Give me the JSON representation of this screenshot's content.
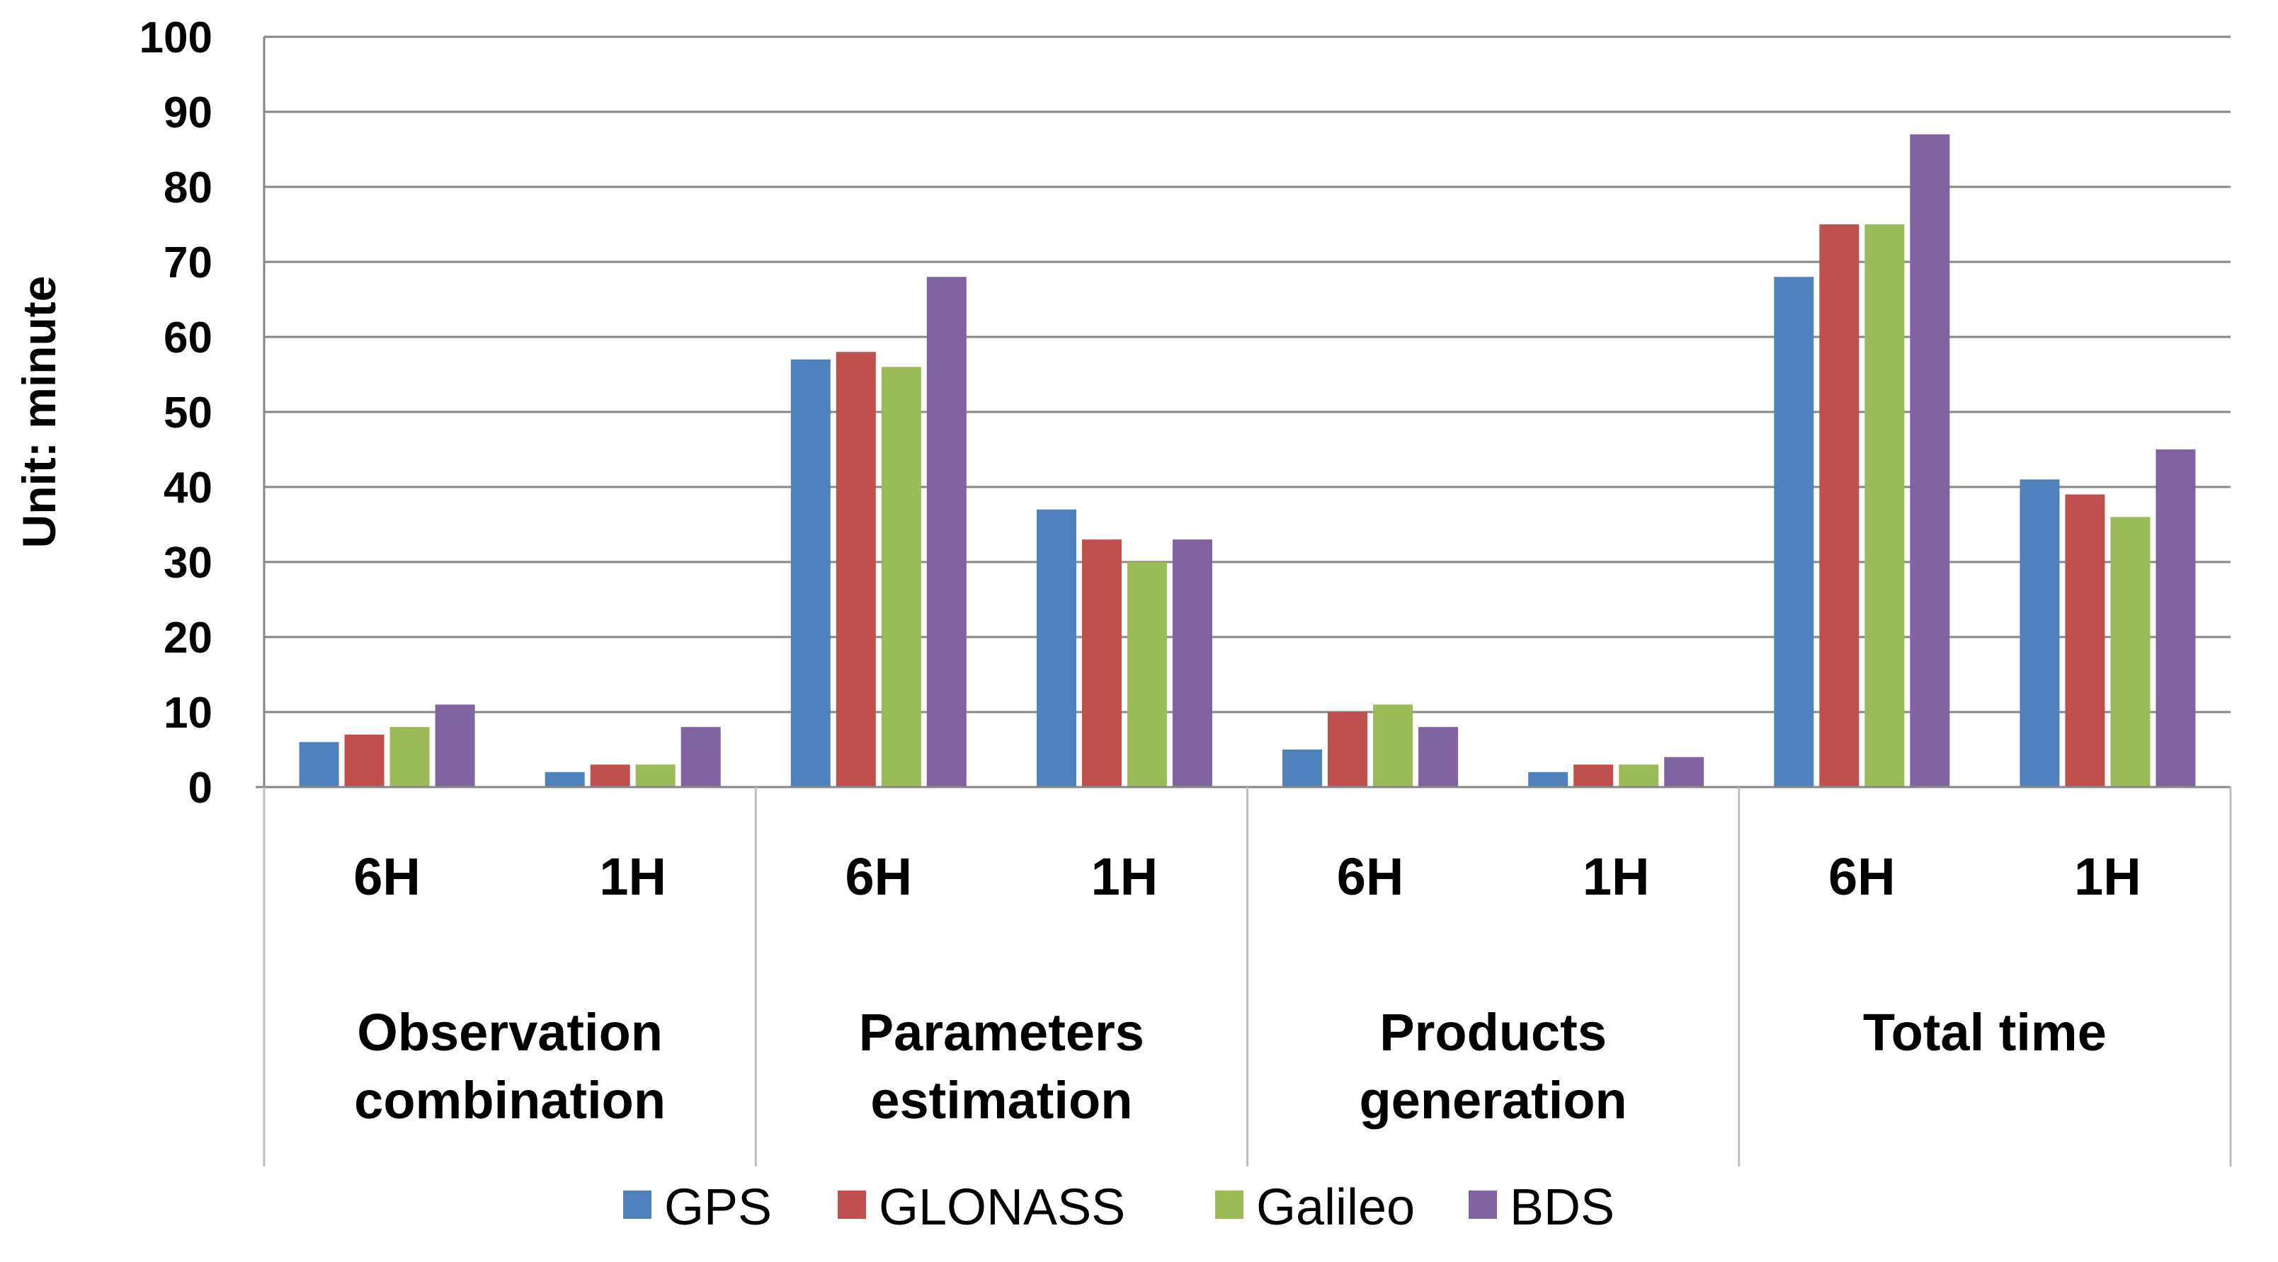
{
  "chart_data": {
    "type": "bar",
    "title": "",
    "xlabel": "",
    "ylabel": "Unit: minute",
    "ylim": [
      0,
      100
    ],
    "yticks": [
      0,
      10,
      20,
      30,
      40,
      50,
      60,
      70,
      80,
      90,
      100
    ],
    "grid": true,
    "legend_position": "bottom",
    "groups": [
      {
        "label_lines": [
          "Observation",
          "combination"
        ],
        "subcategories": [
          "6H",
          "1H"
        ]
      },
      {
        "label_lines": [
          "Parameters",
          "estimation"
        ],
        "subcategories": [
          "6H",
          "1H"
        ]
      },
      {
        "label_lines": [
          "Products",
          "generation"
        ],
        "subcategories": [
          "6H",
          "1H"
        ]
      },
      {
        "label_lines": [
          "Total time"
        ],
        "subcategories": [
          "6H",
          "1H"
        ]
      }
    ],
    "series": [
      {
        "name": "GPS",
        "color": "#4F81BD",
        "values": [
          6,
          2,
          57,
          37,
          5,
          2,
          68,
          41
        ]
      },
      {
        "name": "GLONASS",
        "color": "#C0504D",
        "values": [
          7,
          3,
          58,
          33,
          10,
          3,
          75,
          39
        ]
      },
      {
        "name": "Galileo",
        "color": "#9BBB59",
        "values": [
          8,
          3,
          56,
          30,
          11,
          3,
          75,
          36
        ]
      },
      {
        "name": "BDS",
        "color": "#8064A2",
        "values": [
          11,
          8,
          68,
          33,
          8,
          4,
          87,
          45
        ]
      }
    ]
  }
}
